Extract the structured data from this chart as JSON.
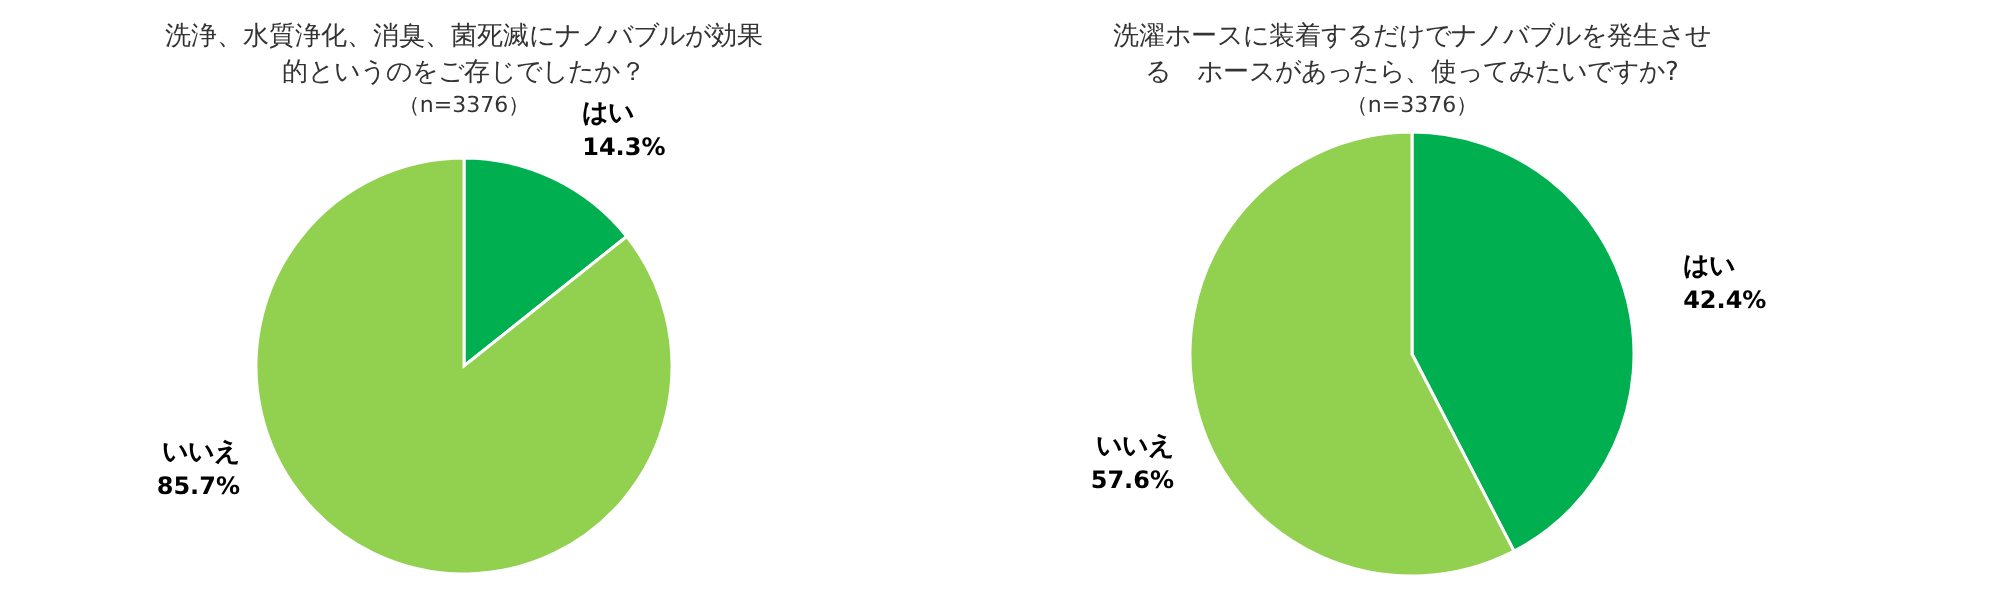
{
  "chart_data": [
    {
      "type": "pie",
      "title": "洗浄、水質浄化、消臭、菌死滅にナノバブルが効果的というのをご存じでしたか？",
      "subtitle": "（n=3376）",
      "categories": [
        "はい",
        "いいえ"
      ],
      "values": [
        14.3,
        85.7
      ],
      "colors": [
        "#00b050",
        "#92d050"
      ],
      "value_labels": [
        "14.3%",
        "85.7%"
      ],
      "legend": false
    },
    {
      "type": "pie",
      "title": "洗濯ホースに装着するだけでナノバブルを発生させる　ホースがあったら、使ってみたいですか?",
      "subtitle": "（n=3376）",
      "categories": [
        "はい",
        "いいえ"
      ],
      "values": [
        42.4,
        57.6
      ],
      "colors": [
        "#00b050",
        "#92d050"
      ],
      "value_labels": [
        "42.4%",
        "57.6%"
      ],
      "legend": false
    }
  ]
}
